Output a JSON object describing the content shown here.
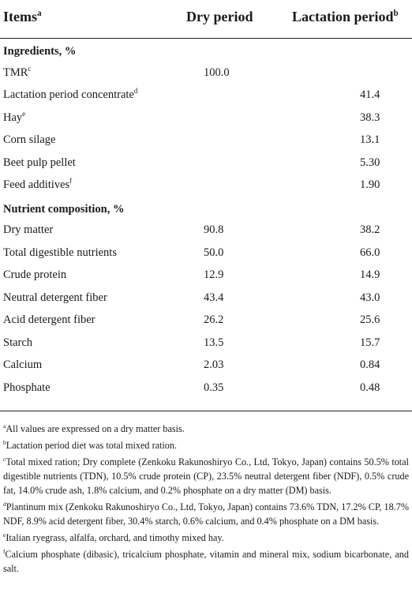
{
  "header": {
    "items_label": "Items",
    "items_sup": "a",
    "dry_label": "Dry period",
    "lact_label": "Lactation period",
    "lact_sup": "b"
  },
  "ingredients": {
    "title": "Ingredients, %",
    "rows": [
      {
        "name": "TMR",
        "sup": "c",
        "dry": "100.0",
        "lact": ""
      },
      {
        "name": "Lactation period concentrate",
        "sup": "d",
        "dry": "",
        "lact": "41.4"
      },
      {
        "name": "Hay",
        "sup": "e",
        "dry": "",
        "lact": "38.3"
      },
      {
        "name": "Corn silage",
        "sup": "",
        "dry": "",
        "lact": "13.1"
      },
      {
        "name": "Beet pulp pellet",
        "sup": "",
        "dry": "",
        "lact": "5.30"
      },
      {
        "name": "Feed additives",
        "sup": "f",
        "dry": "",
        "lact": "1.90"
      }
    ]
  },
  "nutrients": {
    "title": "Nutrient composition, %",
    "rows": [
      {
        "name": "Dry matter",
        "dry": "90.8",
        "lact": "38.2"
      },
      {
        "name": "Total digestible nutrients",
        "dry": "50.0",
        "lact": "66.0"
      },
      {
        "name": "Crude protein",
        "dry": "12.9",
        "lact": "14.9"
      },
      {
        "name": "Neutral detergent fiber",
        "dry": "43.4",
        "lact": "43.0"
      },
      {
        "name": "Acid detergent fiber",
        "dry": "26.2",
        "lact": "25.6"
      },
      {
        "name": "Starch",
        "dry": "13.5",
        "lact": "15.7"
      },
      {
        "name": "Calcium",
        "dry": "2.03",
        "lact": "0.84"
      },
      {
        "name": "Phosphate",
        "dry": "0.35",
        "lact": "0.48"
      }
    ]
  },
  "footnotes": [
    {
      "mark": "a",
      "text": "All values are expressed on a dry matter basis."
    },
    {
      "mark": "b",
      "text": "Lactation period diet was total mixed ration."
    },
    {
      "mark": "c",
      "text": "Total mixed ration; Dry complete (Zenkoku Rakunoshiryo Co., Ltd, Tokyo, Japan) contains 50.5% total digestible nutrients (TDN), 10.5% crude protein (CP), 23.5% neutral detergent fiber (NDF), 0.5% crude fat, 14.0% crude ash, 1.8% calcium, and 0.2% phosphate on a dry matter (DM) basis."
    },
    {
      "mark": "d",
      "text": "Plantinum mix (Zenkoku Rakunoshiryo Co., Ltd, Tokyo, Japan) contains 73.6% TDN, 17.2% CP, 18.7% NDF, 8.9% acid detergent fiber, 30.4% starch, 0.6% calcium, and 0.4% phosphate on a DM basis."
    },
    {
      "mark": "e",
      "text": "Italian ryegrass, alfalfa, orchard, and timothy mixed hay."
    },
    {
      "mark": "f",
      "text": "Calcium phosphate (dibasic), tricalcium phosphate, vitamin and mineral mix, sodium bicarbonate, and salt."
    }
  ]
}
